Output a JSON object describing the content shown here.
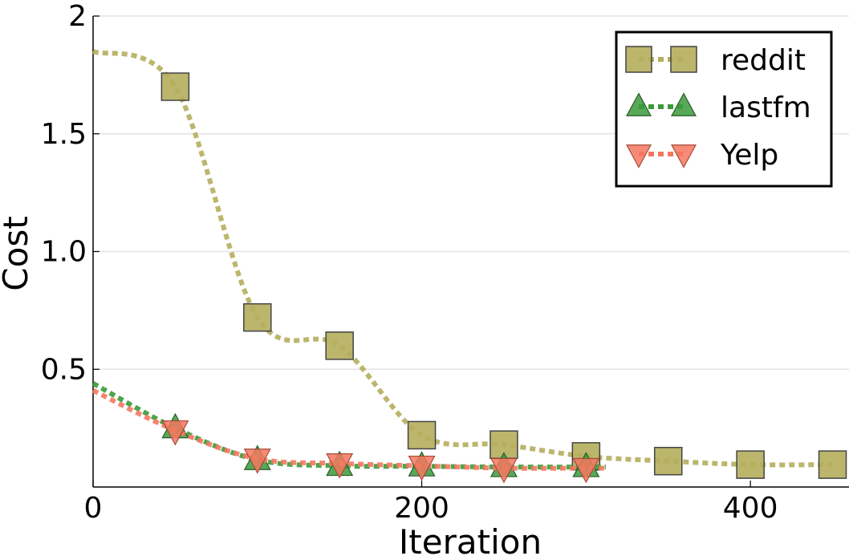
{
  "chart_data": {
    "type": "line",
    "title": "",
    "xlabel": "Iteration",
    "ylabel": "Cost",
    "xlim": [
      0,
      460
    ],
    "ylim": [
      0,
      2
    ],
    "xticks": [
      0,
      200,
      400
    ],
    "xtick_labels": [
      "0",
      "200",
      "400"
    ],
    "yticks": [
      0.5,
      1.0,
      1.5,
      2
    ],
    "ytick_labels": [
      "0.5",
      "1.0",
      "1.5",
      "2"
    ],
    "grid": "horizontal",
    "legend_position": "top-right",
    "series": [
      {
        "name": "reddit",
        "color": "#b5ae5d",
        "marker": "square",
        "line_style": "dotted",
        "x": [
          0,
          50,
          100,
          150,
          200,
          250,
          300,
          350,
          400,
          450
        ],
        "y": [
          1.85,
          1.7,
          0.72,
          0.6,
          0.22,
          0.18,
          0.13,
          0.11,
          0.095,
          0.095
        ]
      },
      {
        "name": "lastfm",
        "color": "#3a9a3a",
        "marker": "triangle-up",
        "line_style": "dotted",
        "x": [
          0,
          50,
          100,
          150,
          200,
          250,
          300
        ],
        "y": [
          0.44,
          0.25,
          0.115,
          0.09,
          0.088,
          0.085,
          0.085
        ]
      },
      {
        "name": "Yelp",
        "color": "#f47860",
        "marker": "triangle-down",
        "line_style": "dotted",
        "x": [
          0,
          50,
          100,
          150,
          200,
          250,
          300
        ],
        "y": [
          0.41,
          0.24,
          0.12,
          0.1,
          0.09,
          0.08,
          0.08
        ]
      }
    ]
  }
}
